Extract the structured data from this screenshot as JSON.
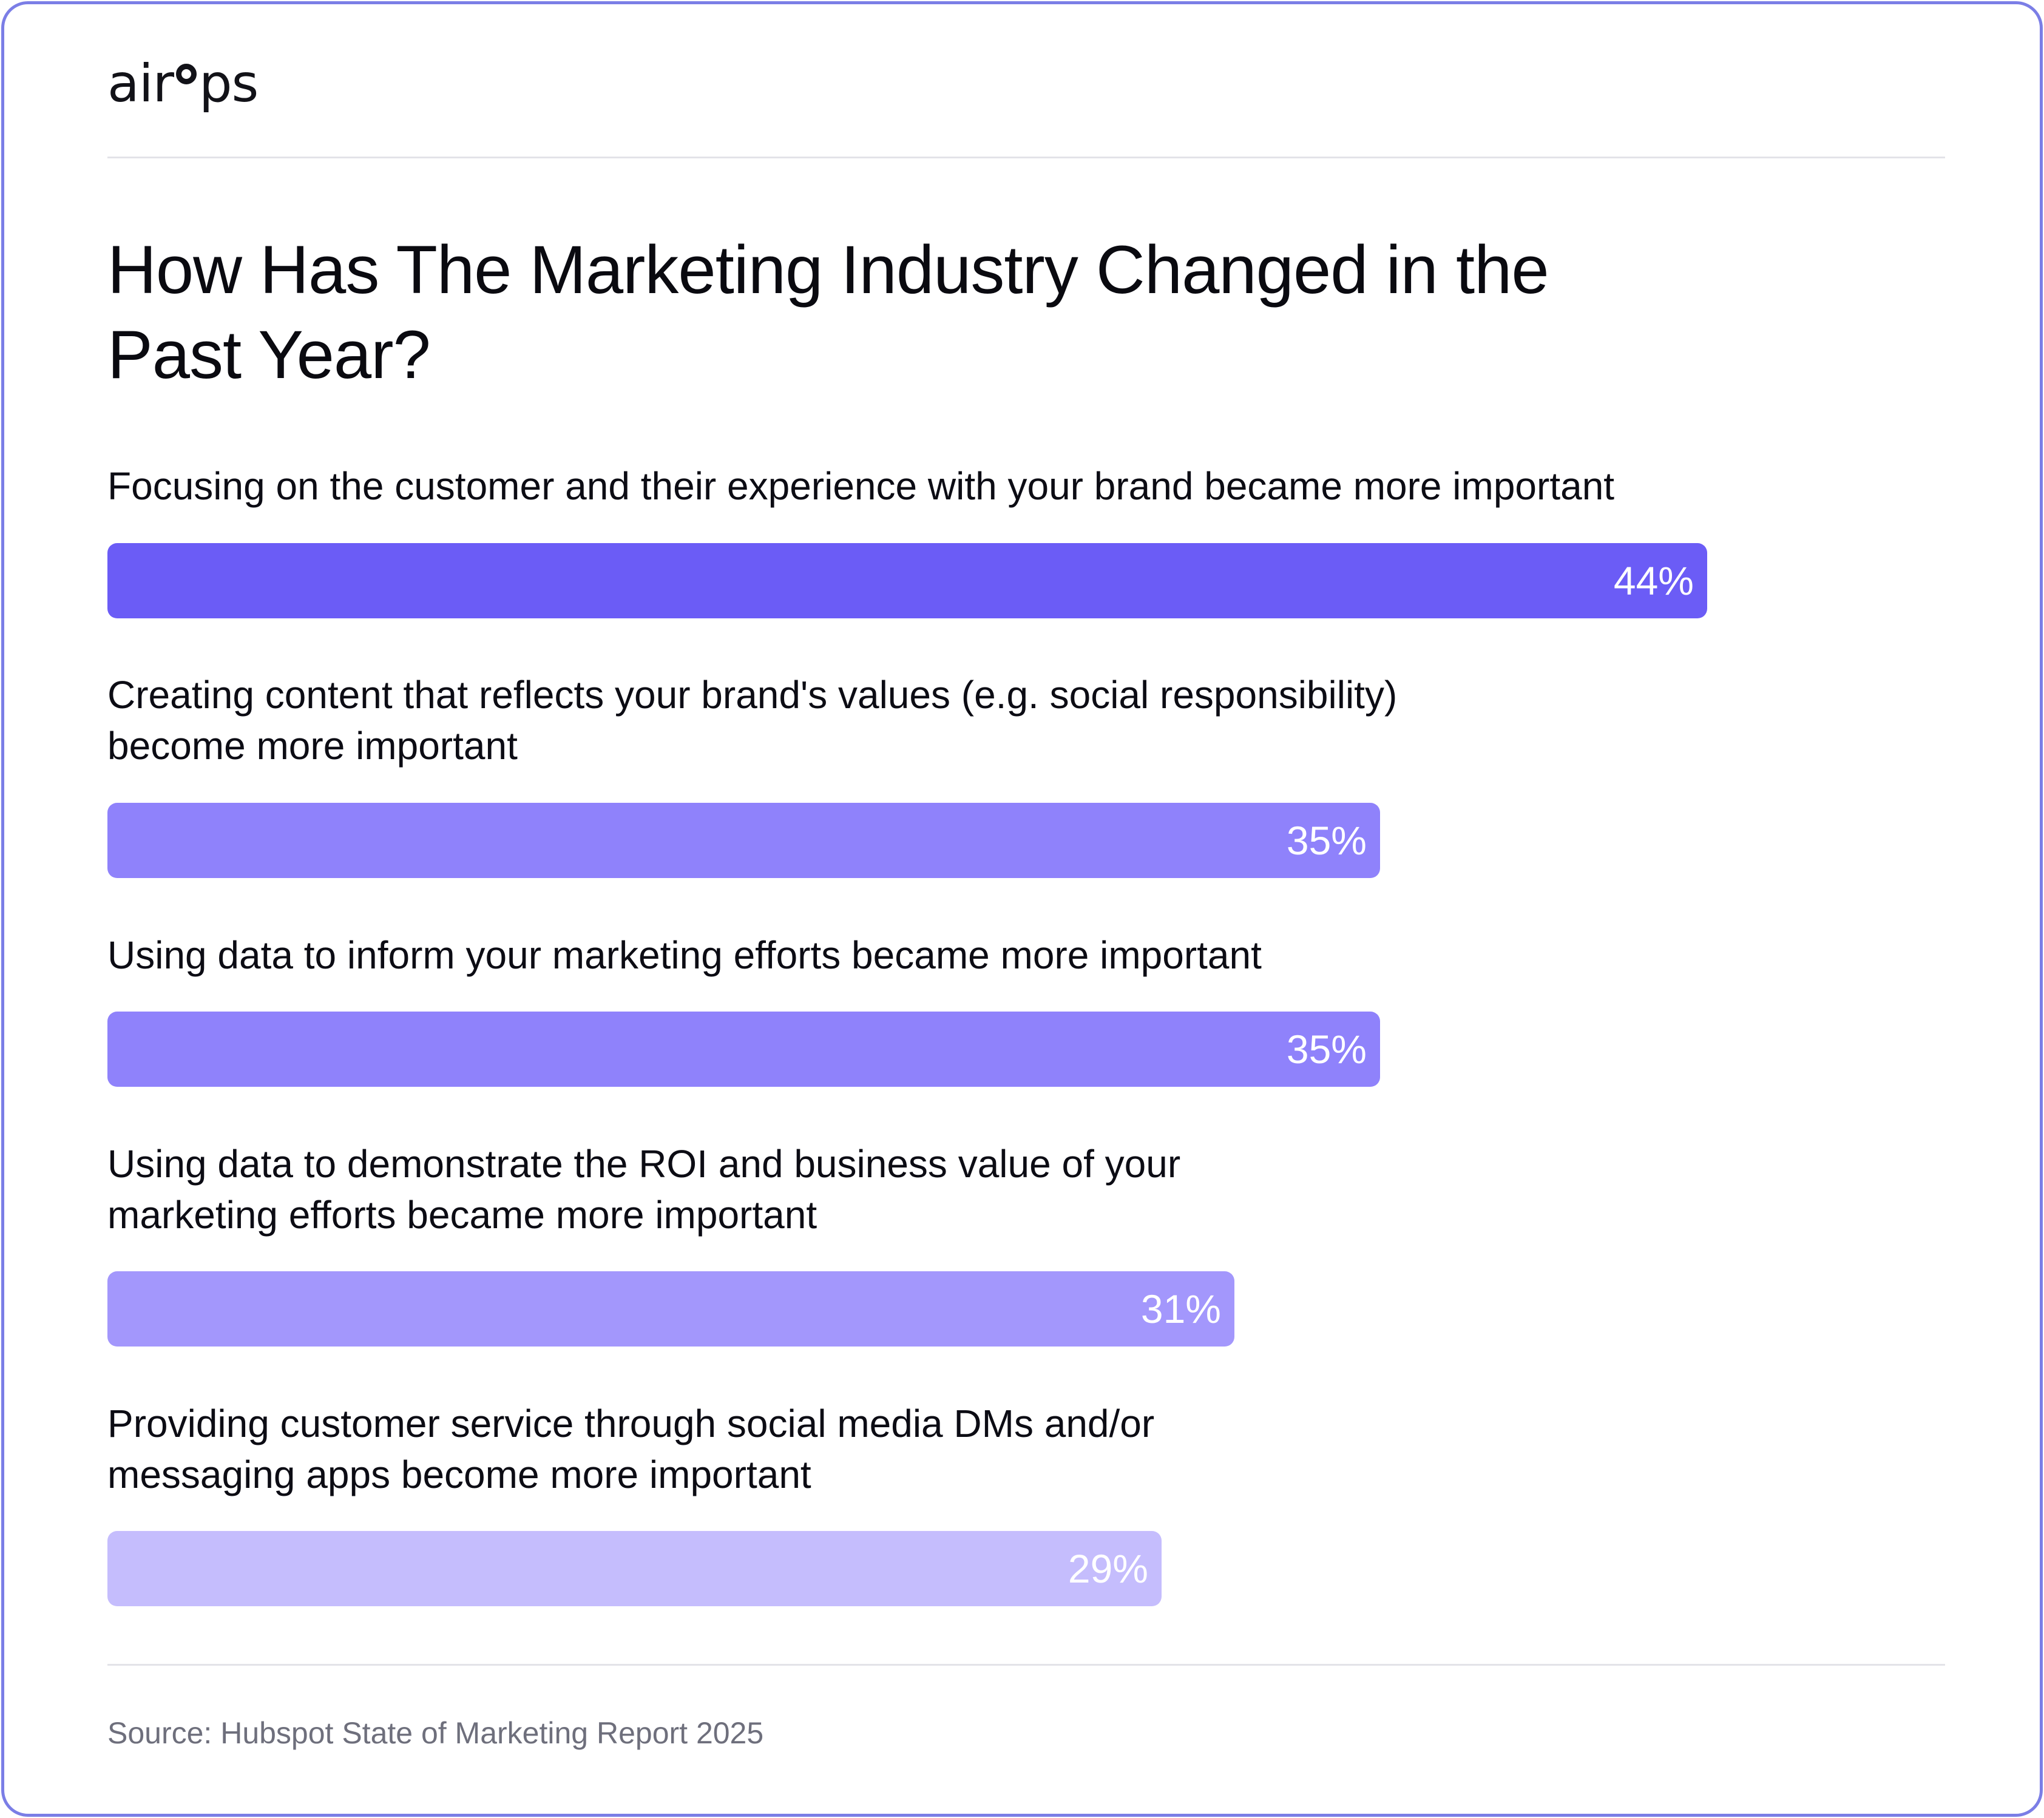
{
  "brand": {
    "logo_prefix": "air",
    "logo_suffix": "ps"
  },
  "chart_data": {
    "type": "bar",
    "orientation": "horizontal",
    "title": "How Has The Marketing Industry Changed in the Past Year?",
    "categories": [
      "Focusing on the customer and their experience with your brand became more important",
      "Creating content that reflects your brand's values (e.g. social responsibility)\nbecome more important",
      "Using data to inform your marketing efforts became more important",
      "Using data to demonstrate the ROI and business value of your\nmarketing efforts became more important",
      "Providing customer service through social media DMs and/or\nmessaging apps become more important"
    ],
    "values": [
      44,
      35,
      35,
      31,
      29
    ],
    "value_labels": [
      "44%",
      "35%",
      "35%",
      "31%",
      "29%"
    ],
    "bar_colors": [
      "#6b5cf6",
      "#8f82fb",
      "#8f82fb",
      "#a397fc",
      "#c5bdfd"
    ],
    "xlim": [
      0,
      100
    ],
    "grid": false,
    "legend": false
  },
  "source": "Source: Hubspot State of Marketing Report 2025"
}
